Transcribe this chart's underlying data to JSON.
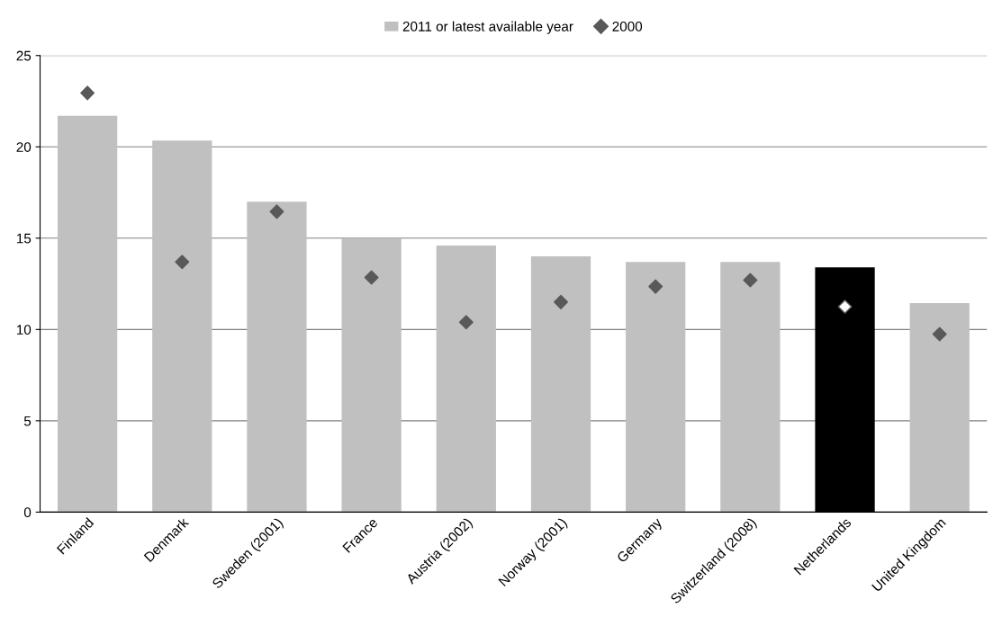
{
  "chart_data": {
    "type": "bar",
    "categories": [
      "Finland",
      "Denmark",
      "Sweden (2001)",
      "France",
      "Austria (2002)",
      "Norway (2001)",
      "Germany",
      "Switzerland (2008)",
      "Netherlands",
      "United Kingdom"
    ],
    "series": [
      {
        "name": "2011 or latest available year",
        "color": "#c0c0c0",
        "colors": [
          "#c0c0c0",
          "#c0c0c0",
          "#c0c0c0",
          "#c0c0c0",
          "#c0c0c0",
          "#c0c0c0",
          "#c0c0c0",
          "#c0c0c0",
          "#000000",
          "#c0c0c0"
        ],
        "values": [
          21.7,
          20.35,
          17.0,
          15.0,
          14.6,
          14.0,
          13.7,
          13.7,
          13.4,
          11.45
        ]
      },
      {
        "name": "2000",
        "type": "scatter",
        "marker": "diamond",
        "color": "#595959",
        "colors": [
          "#595959",
          "#595959",
          "#595959",
          "#595959",
          "#595959",
          "#595959",
          "#595959",
          "#595959",
          "#ffffff",
          "#595959"
        ],
        "values": [
          22.95,
          13.7,
          16.45,
          12.85,
          10.4,
          11.5,
          12.35,
          12.7,
          11.25,
          9.75
        ]
      }
    ],
    "ylim": [
      0,
      25
    ],
    "yticks": [
      0,
      5,
      10,
      15,
      20,
      25
    ],
    "grid": "y",
    "legend": "top"
  }
}
